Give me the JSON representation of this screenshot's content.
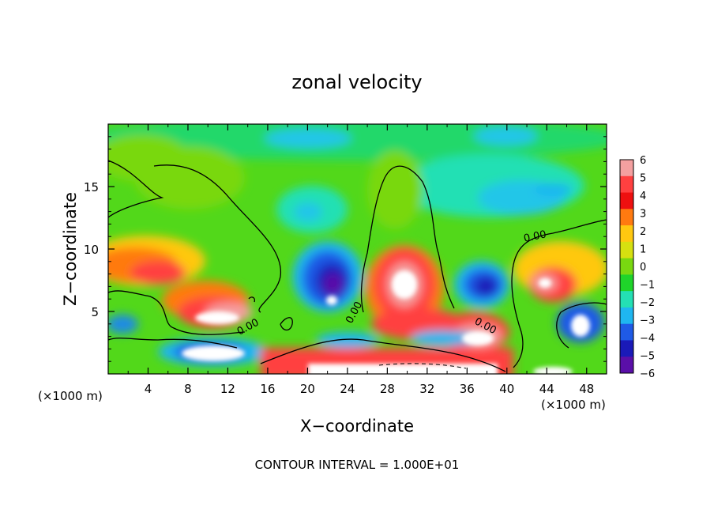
{
  "chart_data": {
    "type": "heatmap",
    "title": "zonal velocity",
    "xlabel": "X−coordinate",
    "ylabel": "Z−coordinate",
    "x_unit_left": "(×1000 m)",
    "x_unit_right": "(×1000 m)",
    "footer": "CONTOUR INTERVAL = 1.000E+01",
    "xlim": [
      0,
      50
    ],
    "ylim": [
      0,
      20
    ],
    "x_ticks": [
      4,
      8,
      12,
      16,
      20,
      24,
      28,
      32,
      36,
      40,
      44,
      48
    ],
    "x_tick_labels": [
      "4",
      "8",
      "12",
      "16",
      "20",
      "24",
      "28",
      "32",
      "36",
      "40",
      "44",
      "48"
    ],
    "y_ticks": [
      5,
      10,
      15
    ],
    "y_tick_labels": [
      "5",
      "10",
      "15"
    ],
    "colorbar": {
      "labels": [
        "6",
        "5",
        "4",
        "3",
        "2",
        "1",
        "0",
        "−1",
        "−2",
        "−3",
        "−4",
        "−5",
        "−6"
      ],
      "colors": [
        "#f4a0a0",
        "#ff4040",
        "#ee1010",
        "#ff7a10",
        "#ffc810",
        "#d6e010",
        "#79d810",
        "#1fd42a",
        "#24e0b4",
        "#1fb6f0",
        "#1f5ae6",
        "#1a1ab8",
        "#5a0fa8"
      ]
    },
    "contour_labels": [
      "0.00",
      "0.00",
      "0.00",
      "0.00"
    ],
    "features": [
      {
        "x": 10,
        "z": 2,
        "value": "<-5"
      },
      {
        "x": 22.5,
        "z": 6.5,
        "value": "<-6"
      },
      {
        "x": 30,
        "z": 7.5,
        "value": ">6"
      },
      {
        "x": 11,
        "z": 4.5,
        "value": ">6"
      },
      {
        "x": 38,
        "z": 2.5,
        "value": ">6"
      },
      {
        "x": 47,
        "z": 4,
        "value": "<-6"
      },
      {
        "x": 44,
        "z": 7,
        "value": ">5"
      },
      {
        "x": 4,
        "z": 8.5,
        "value": ">4"
      },
      {
        "x": 38,
        "z": 7,
        "value": "<-5"
      }
    ]
  }
}
